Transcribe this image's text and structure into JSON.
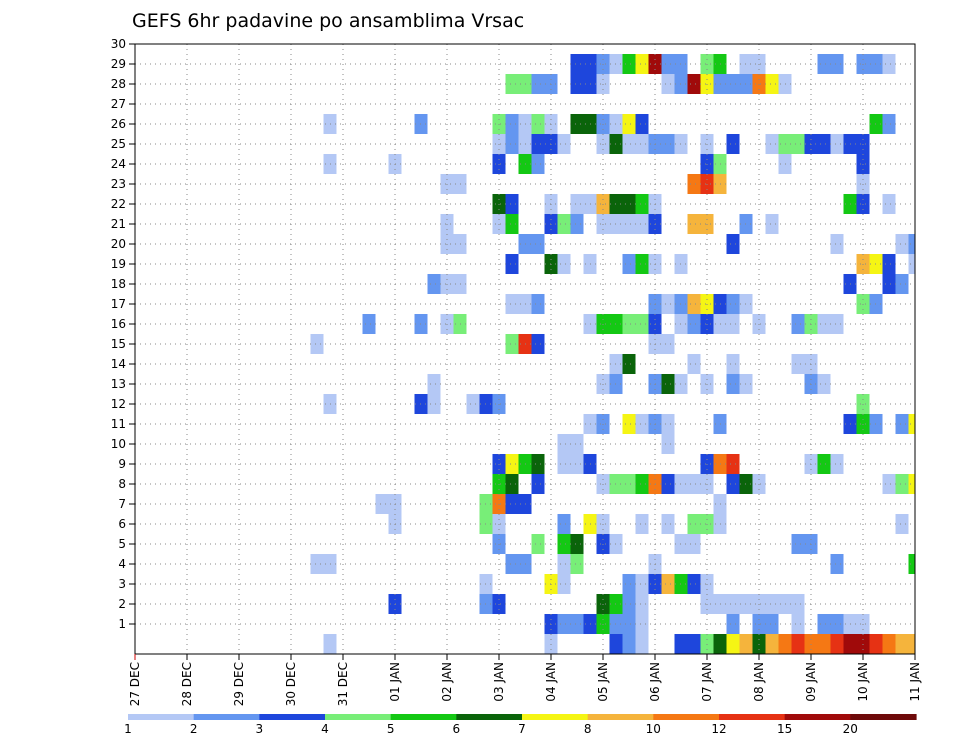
{
  "chart_data": {
    "type": "heatmap",
    "title": "GEFS 6hr padavine po ansamblima Vrsac",
    "xlabel": "",
    "ylabel": "",
    "x_tick_labels": [
      "27 DEC",
      "28 DEC",
      "29 DEC",
      "30 DEC",
      "31 DEC",
      "01 JAN",
      "02 JAN",
      "03 JAN",
      "04 JAN",
      "05 JAN",
      "06 JAN",
      "07 JAN",
      "08 JAN",
      "09 JAN",
      "10 JAN",
      "11 JAN"
    ],
    "y_tick_labels": [
      "1",
      "2",
      "3",
      "4",
      "5",
      "6",
      "7",
      "8",
      "9",
      "10",
      "11",
      "12",
      "13",
      "14",
      "15",
      "16",
      "17",
      "18",
      "19",
      "20",
      "21",
      "22",
      "23",
      "24",
      "25",
      "26",
      "27",
      "28",
      "29",
      "30"
    ],
    "xlim": [
      0,
      60
    ],
    "ylim": [
      0,
      30
    ],
    "x_unit": "6-hour step from 27 DEC 00Z",
    "y_unit": "ensemble member",
    "grid": true,
    "colorbar": {
      "labels": [
        "1",
        "2",
        "3",
        "4",
        "5",
        "6",
        "7",
        "8",
        "10",
        "12",
        "15",
        "20"
      ],
      "colors": [
        "#b4c8f5",
        "#6496f0",
        "#1e46dc",
        "#78ee78",
        "#14c814",
        "#0a640a",
        "#f5f514",
        "#f5b43c",
        "#f57814",
        "#e63214",
        "#a00a0a",
        "#6e0a0a"
      ]
    },
    "cells": [
      [
        15,
        0,
        1
      ],
      [
        32,
        0,
        1
      ],
      [
        37,
        0,
        3
      ],
      [
        38,
        0,
        2
      ],
      [
        39,
        0,
        1
      ],
      [
        42,
        0,
        3
      ],
      [
        43,
        0,
        3
      ],
      [
        44,
        0,
        4
      ],
      [
        45,
        0,
        6
      ],
      [
        46,
        0,
        7
      ],
      [
        47,
        0,
        8
      ],
      [
        48,
        0,
        6
      ],
      [
        49,
        0,
        8
      ],
      [
        50,
        0,
        9
      ],
      [
        51,
        0,
        10
      ],
      [
        52,
        0,
        9
      ],
      [
        53,
        0,
        9
      ],
      [
        54,
        0,
        10
      ],
      [
        55,
        0,
        11
      ],
      [
        56,
        0,
        11
      ],
      [
        57,
        0,
        10
      ],
      [
        58,
        0,
        9
      ],
      [
        59,
        0,
        8
      ],
      [
        60,
        0,
        8
      ],
      [
        32,
        1,
        3
      ],
      [
        33,
        1,
        2
      ],
      [
        34,
        1,
        2
      ],
      [
        35,
        1,
        3
      ],
      [
        36,
        1,
        5
      ],
      [
        37,
        1,
        2
      ],
      [
        38,
        1,
        2
      ],
      [
        39,
        1,
        1
      ],
      [
        46,
        1,
        2
      ],
      [
        48,
        1,
        2
      ],
      [
        49,
        1,
        2
      ],
      [
        51,
        1,
        1
      ],
      [
        53,
        1,
        2
      ],
      [
        54,
        1,
        2
      ],
      [
        55,
        1,
        1
      ],
      [
        56,
        1,
        1
      ],
      [
        20,
        2,
        3
      ],
      [
        27,
        2,
        2
      ],
      [
        28,
        2,
        3
      ],
      [
        36,
        2,
        6
      ],
      [
        37,
        2,
        5
      ],
      [
        38,
        2,
        2
      ],
      [
        39,
        2,
        1
      ],
      [
        44,
        2,
        1
      ],
      [
        45,
        2,
        1
      ],
      [
        46,
        2,
        1
      ],
      [
        47,
        2,
        1
      ],
      [
        48,
        2,
        1
      ],
      [
        49,
        2,
        1
      ],
      [
        50,
        2,
        1
      ],
      [
        51,
        2,
        1
      ],
      [
        27,
        3,
        1
      ],
      [
        32,
        3,
        7
      ],
      [
        33,
        3,
        1
      ],
      [
        38,
        3,
        2
      ],
      [
        39,
        3,
        1
      ],
      [
        40,
        3,
        3
      ],
      [
        41,
        3,
        8
      ],
      [
        42,
        3,
        5
      ],
      [
        43,
        3,
        3
      ],
      [
        44,
        3,
        1
      ],
      [
        14,
        4,
        1
      ],
      [
        15,
        4,
        1
      ],
      [
        29,
        4,
        2
      ],
      [
        30,
        4,
        2
      ],
      [
        33,
        4,
        1
      ],
      [
        34,
        4,
        4
      ],
      [
        40,
        4,
        1
      ],
      [
        54,
        4,
        2
      ],
      [
        60,
        4,
        5
      ],
      [
        28,
        5,
        2
      ],
      [
        31,
        5,
        4
      ],
      [
        33,
        5,
        5
      ],
      [
        34,
        5,
        6
      ],
      [
        36,
        5,
        3
      ],
      [
        37,
        5,
        1
      ],
      [
        42,
        5,
        1
      ],
      [
        43,
        5,
        1
      ],
      [
        51,
        5,
        2
      ],
      [
        52,
        5,
        2
      ],
      [
        20,
        6,
        1
      ],
      [
        27,
        6,
        4
      ],
      [
        28,
        6,
        1
      ],
      [
        33,
        6,
        2
      ],
      [
        35,
        6,
        7
      ],
      [
        36,
        6,
        1
      ],
      [
        39,
        6,
        1
      ],
      [
        41,
        6,
        1
      ],
      [
        43,
        6,
        4
      ],
      [
        44,
        6,
        4
      ],
      [
        45,
        6,
        1
      ],
      [
        59,
        6,
        1
      ],
      [
        19,
        7,
        1
      ],
      [
        20,
        7,
        1
      ],
      [
        27,
        7,
        4
      ],
      [
        28,
        7,
        9
      ],
      [
        29,
        7,
        3
      ],
      [
        30,
        7,
        3
      ],
      [
        45,
        7,
        1
      ],
      [
        28,
        8,
        5
      ],
      [
        29,
        8,
        6
      ],
      [
        31,
        8,
        3
      ],
      [
        36,
        8,
        1
      ],
      [
        37,
        8,
        4
      ],
      [
        38,
        8,
        4
      ],
      [
        39,
        8,
        5
      ],
      [
        40,
        8,
        9
      ],
      [
        41,
        8,
        3
      ],
      [
        42,
        8,
        1
      ],
      [
        43,
        8,
        1
      ],
      [
        44,
        8,
        1
      ],
      [
        46,
        8,
        3
      ],
      [
        47,
        8,
        6
      ],
      [
        48,
        8,
        1
      ],
      [
        58,
        8,
        1
      ],
      [
        59,
        8,
        4
      ],
      [
        60,
        8,
        7
      ],
      [
        28,
        9,
        3
      ],
      [
        29,
        9,
        7
      ],
      [
        30,
        9,
        5
      ],
      [
        31,
        9,
        6
      ],
      [
        33,
        9,
        1
      ],
      [
        34,
        9,
        1
      ],
      [
        35,
        9,
        3
      ],
      [
        44,
        9,
        3
      ],
      [
        45,
        9,
        9
      ],
      [
        46,
        9,
        10
      ],
      [
        52,
        9,
        1
      ],
      [
        53,
        9,
        5
      ],
      [
        54,
        9,
        1
      ],
      [
        33,
        10,
        1
      ],
      [
        34,
        10,
        1
      ],
      [
        41,
        10,
        1
      ],
      [
        35,
        11,
        1
      ],
      [
        36,
        11,
        2
      ],
      [
        38,
        11,
        7
      ],
      [
        39,
        11,
        1
      ],
      [
        40,
        11,
        2
      ],
      [
        41,
        11,
        1
      ],
      [
        45,
        11,
        2
      ],
      [
        55,
        11,
        3
      ],
      [
        56,
        11,
        5
      ],
      [
        57,
        11,
        2
      ],
      [
        59,
        11,
        2
      ],
      [
        60,
        11,
        7
      ],
      [
        15,
        12,
        1
      ],
      [
        22,
        12,
        3
      ],
      [
        23,
        12,
        1
      ],
      [
        26,
        12,
        1
      ],
      [
        27,
        12,
        3
      ],
      [
        28,
        12,
        2
      ],
      [
        56,
        12,
        4
      ],
      [
        23,
        13,
        1
      ],
      [
        36,
        13,
        1
      ],
      [
        37,
        13,
        2
      ],
      [
        40,
        13,
        2
      ],
      [
        41,
        13,
        6
      ],
      [
        42,
        13,
        1
      ],
      [
        44,
        13,
        1
      ],
      [
        46,
        13,
        2
      ],
      [
        47,
        13,
        1
      ],
      [
        52,
        13,
        2
      ],
      [
        53,
        13,
        1
      ],
      [
        37,
        14,
        1
      ],
      [
        38,
        14,
        6
      ],
      [
        43,
        14,
        1
      ],
      [
        46,
        14,
        1
      ],
      [
        51,
        14,
        1
      ],
      [
        52,
        14,
        1
      ],
      [
        14,
        15,
        1
      ],
      [
        29,
        15,
        4
      ],
      [
        30,
        15,
        10
      ],
      [
        31,
        15,
        3
      ],
      [
        40,
        15,
        1
      ],
      [
        41,
        15,
        1
      ],
      [
        18,
        16,
        2
      ],
      [
        22,
        16,
        2
      ],
      [
        24,
        16,
        1
      ],
      [
        25,
        16,
        4
      ],
      [
        35,
        16,
        1
      ],
      [
        36,
        16,
        5
      ],
      [
        37,
        16,
        5
      ],
      [
        38,
        16,
        4
      ],
      [
        39,
        16,
        4
      ],
      [
        40,
        16,
        3
      ],
      [
        42,
        16,
        1
      ],
      [
        43,
        16,
        2
      ],
      [
        44,
        16,
        3
      ],
      [
        45,
        16,
        1
      ],
      [
        46,
        16,
        1
      ],
      [
        48,
        16,
        1
      ],
      [
        51,
        16,
        2
      ],
      [
        52,
        16,
        4
      ],
      [
        53,
        16,
        1
      ],
      [
        54,
        16,
        1
      ],
      [
        29,
        17,
        1
      ],
      [
        30,
        17,
        1
      ],
      [
        31,
        17,
        2
      ],
      [
        40,
        17,
        2
      ],
      [
        41,
        17,
        1
      ],
      [
        42,
        17,
        2
      ],
      [
        43,
        17,
        8
      ],
      [
        44,
        17,
        7
      ],
      [
        45,
        17,
        3
      ],
      [
        46,
        17,
        2
      ],
      [
        47,
        17,
        1
      ],
      [
        56,
        17,
        4
      ],
      [
        57,
        17,
        2
      ],
      [
        23,
        18,
        2
      ],
      [
        24,
        18,
        1
      ],
      [
        25,
        18,
        1
      ],
      [
        55,
        18,
        3
      ],
      [
        58,
        18,
        3
      ],
      [
        59,
        18,
        2
      ],
      [
        29,
        19,
        3
      ],
      [
        32,
        19,
        6
      ],
      [
        33,
        19,
        1
      ],
      [
        35,
        19,
        1
      ],
      [
        38,
        19,
        2
      ],
      [
        39,
        19,
        5
      ],
      [
        40,
        19,
        1
      ],
      [
        42,
        19,
        1
      ],
      [
        56,
        19,
        8
      ],
      [
        57,
        19,
        7
      ],
      [
        58,
        19,
        3
      ],
      [
        60,
        19,
        1
      ],
      [
        24,
        20,
        1
      ],
      [
        25,
        20,
        1
      ],
      [
        30,
        20,
        2
      ],
      [
        31,
        20,
        2
      ],
      [
        46,
        20,
        3
      ],
      [
        54,
        20,
        1
      ],
      [
        59,
        20,
        1
      ],
      [
        60,
        20,
        2
      ],
      [
        24,
        21,
        1
      ],
      [
        28,
        21,
        1
      ],
      [
        29,
        21,
        5
      ],
      [
        32,
        21,
        3
      ],
      [
        33,
        21,
        4
      ],
      [
        34,
        21,
        2
      ],
      [
        36,
        21,
        1
      ],
      [
        37,
        21,
        1
      ],
      [
        38,
        21,
        1
      ],
      [
        39,
        21,
        1
      ],
      [
        40,
        21,
        3
      ],
      [
        43,
        21,
        8
      ],
      [
        44,
        21,
        8
      ],
      [
        47,
        21,
        2
      ],
      [
        49,
        21,
        1
      ],
      [
        28,
        22,
        6
      ],
      [
        29,
        22,
        3
      ],
      [
        32,
        22,
        1
      ],
      [
        34,
        22,
        1
      ],
      [
        35,
        22,
        1
      ],
      [
        36,
        22,
        8
      ],
      [
        37,
        22,
        6
      ],
      [
        38,
        22,
        6
      ],
      [
        39,
        22,
        5
      ],
      [
        40,
        22,
        1
      ],
      [
        55,
        22,
        5
      ],
      [
        56,
        22,
        3
      ],
      [
        58,
        22,
        1
      ],
      [
        24,
        23,
        1
      ],
      [
        25,
        23,
        1
      ],
      [
        43,
        23,
        9
      ],
      [
        44,
        23,
        10
      ],
      [
        45,
        23,
        8
      ],
      [
        56,
        23,
        1
      ],
      [
        15,
        24,
        1
      ],
      [
        20,
        24,
        1
      ],
      [
        28,
        24,
        3
      ],
      [
        30,
        24,
        5
      ],
      [
        31,
        24,
        2
      ],
      [
        44,
        24,
        3
      ],
      [
        45,
        24,
        4
      ],
      [
        50,
        24,
        1
      ],
      [
        56,
        24,
        3
      ],
      [
        28,
        25,
        1
      ],
      [
        29,
        25,
        2
      ],
      [
        30,
        25,
        1
      ],
      [
        31,
        25,
        3
      ],
      [
        32,
        25,
        3
      ],
      [
        33,
        25,
        1
      ],
      [
        36,
        25,
        1
      ],
      [
        37,
        25,
        6
      ],
      [
        38,
        25,
        1
      ],
      [
        39,
        25,
        1
      ],
      [
        40,
        25,
        2
      ],
      [
        41,
        25,
        2
      ],
      [
        42,
        25,
        1
      ],
      [
        44,
        25,
        1
      ],
      [
        46,
        25,
        3
      ],
      [
        49,
        25,
        1
      ],
      [
        50,
        25,
        4
      ],
      [
        51,
        25,
        4
      ],
      [
        52,
        25,
        3
      ],
      [
        53,
        25,
        3
      ],
      [
        54,
        25,
        1
      ],
      [
        55,
        25,
        3
      ],
      [
        56,
        25,
        3
      ],
      [
        15,
        26,
        1
      ],
      [
        22,
        26,
        2
      ],
      [
        28,
        26,
        4
      ],
      [
        29,
        26,
        2
      ],
      [
        30,
        26,
        1
      ],
      [
        31,
        26,
        4
      ],
      [
        32,
        26,
        1
      ],
      [
        34,
        26,
        6
      ],
      [
        35,
        26,
        6
      ],
      [
        36,
        26,
        2
      ],
      [
        37,
        26,
        1
      ],
      [
        38,
        26,
        7
      ],
      [
        39,
        26,
        3
      ],
      [
        57,
        26,
        5
      ],
      [
        58,
        26,
        2
      ],
      [
        29,
        28,
        4
      ],
      [
        30,
        28,
        4
      ],
      [
        31,
        28,
        2
      ],
      [
        32,
        28,
        2
      ],
      [
        34,
        28,
        3
      ],
      [
        35,
        28,
        3
      ],
      [
        36,
        28,
        1
      ],
      [
        41,
        28,
        1
      ],
      [
        42,
        28,
        2
      ],
      [
        43,
        28,
        11
      ],
      [
        44,
        28,
        7
      ],
      [
        45,
        28,
        2
      ],
      [
        46,
        28,
        2
      ],
      [
        47,
        28,
        2
      ],
      [
        48,
        28,
        9
      ],
      [
        49,
        28,
        7
      ],
      [
        50,
        28,
        1
      ],
      [
        34,
        29,
        3
      ],
      [
        35,
        29,
        3
      ],
      [
        36,
        29,
        2
      ],
      [
        37,
        29,
        1
      ],
      [
        38,
        29,
        5
      ],
      [
        39,
        29,
        7
      ],
      [
        40,
        29,
        11
      ],
      [
        41,
        29,
        2
      ],
      [
        42,
        29,
        2
      ],
      [
        44,
        29,
        4
      ],
      [
        45,
        29,
        5
      ],
      [
        47,
        29,
        1
      ],
      [
        48,
        29,
        1
      ],
      [
        53,
        29,
        2
      ],
      [
        54,
        29,
        2
      ],
      [
        56,
        29,
        2
      ],
      [
        57,
        29,
        2
      ],
      [
        58,
        29,
        1
      ]
    ]
  }
}
